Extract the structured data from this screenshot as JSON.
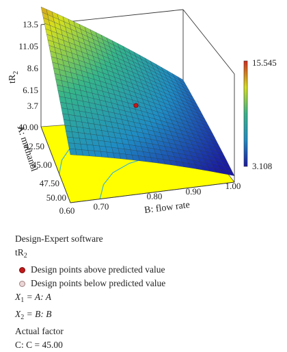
{
  "chart_data": {
    "type": "surface",
    "response_label": "tR",
    "response_subscript": "2",
    "x_axis": {
      "label": "B: flow rate",
      "ticks": [
        "0.60",
        "0.70",
        "0.80",
        "0.90",
        "1.00"
      ],
      "range": [
        0.6,
        1.0
      ]
    },
    "y_axis": {
      "label": "A: methanol",
      "ticks": [
        "40.00",
        "42.50",
        "45.00",
        "47.50",
        "50.00"
      ],
      "range": [
        40,
        50
      ]
    },
    "z_axis": {
      "ticks": [
        "13.5",
        "11.05",
        "8.6",
        "6.15",
        "3.7"
      ],
      "range": [
        3.7,
        13.5
      ]
    },
    "colorbar": {
      "max_label": "15.545",
      "min_label": "3.108",
      "max": 15.545,
      "min": 3.108
    },
    "surface_corners": {
      "A40_B0.60": 13.5,
      "A40_B1.00": 5.5,
      "A50_B0.60": 6.6,
      "A50_B1.00": 2.6
    },
    "design_point": {
      "A": 45.0,
      "B": 0.8,
      "value": 6.2,
      "status": "above"
    },
    "floor_color": "#ffff00",
    "contour_color": "#3ab4d6"
  },
  "legend": {
    "software": "Design-Expert software",
    "response": "tR",
    "response_sub": "2",
    "above": "Design points above predicted value",
    "below": "Design points below predicted value",
    "x1_var": "X",
    "x1_sub": "1",
    "x1_eq": " = A: A",
    "x2_var": "X",
    "x2_sub": "2",
    "x2_eq": " = B: B",
    "actual_factor": "Actual factor",
    "factor_c": "C: C = 45.00"
  }
}
